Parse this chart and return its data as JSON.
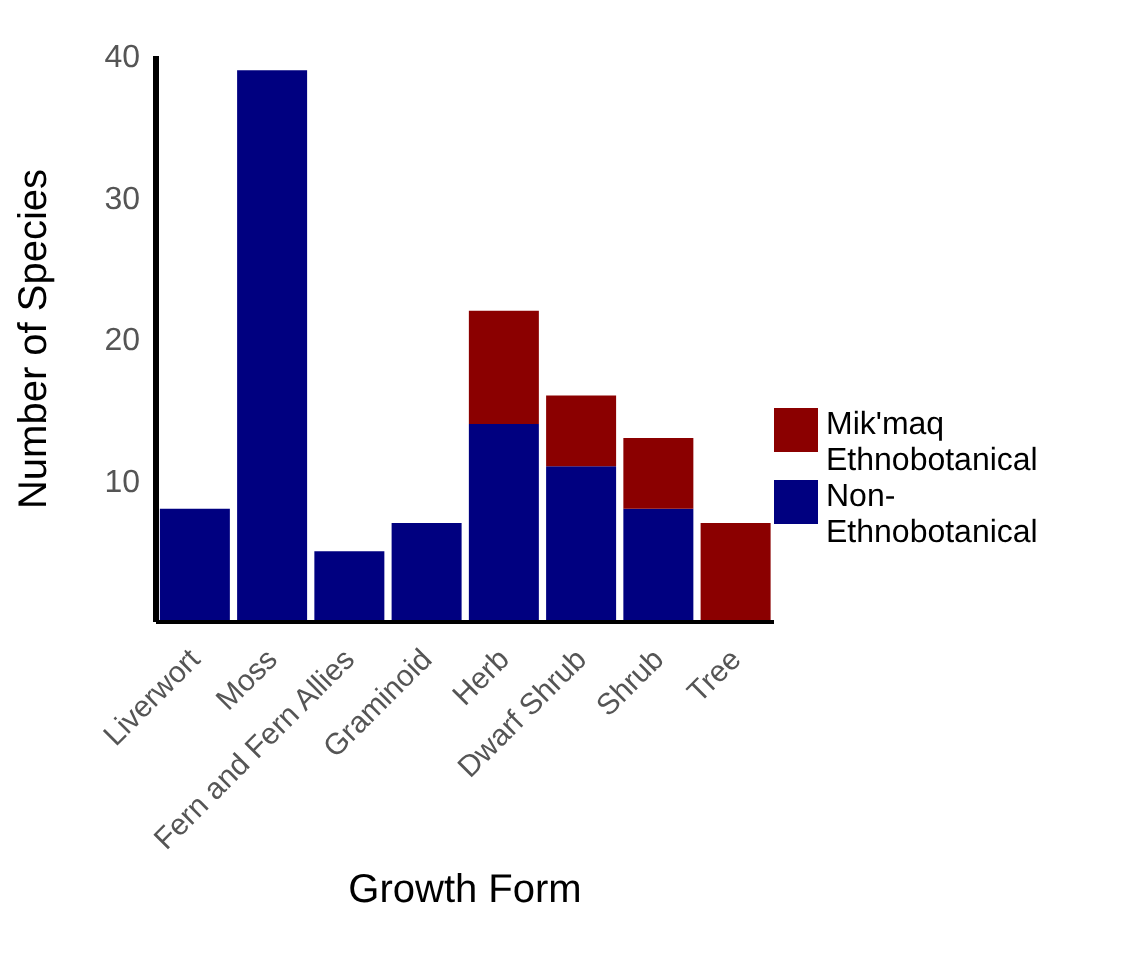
{
  "chart_data": {
    "type": "bar",
    "xlabel": "Growth Form",
    "ylabel": "Number of Species",
    "categories": [
      "Liverwort",
      "Moss",
      "Fern and Fern Allies",
      "Graminoid",
      "Herb",
      "Dwarf Shrub",
      "Shrub",
      "Tree"
    ],
    "stacked": true,
    "series": [
      {
        "name": "Non-Ethnobotanical",
        "color": "#000080",
        "values": [
          8,
          39,
          5,
          7,
          14,
          11,
          8,
          0
        ]
      },
      {
        "name": "Mik'maq Ethnobotanical",
        "color": "#8b0000",
        "values": [
          0,
          0,
          0,
          0,
          8,
          5,
          5,
          7
        ]
      }
    ],
    "ylim": [
      0,
      40
    ],
    "yticks": [
      10,
      20,
      30,
      40
    ],
    "grid": false,
    "legend": "right"
  }
}
